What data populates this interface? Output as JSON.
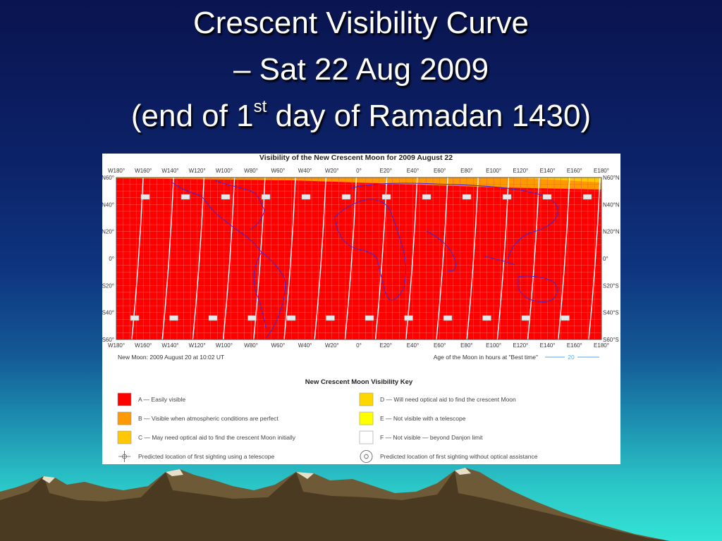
{
  "title": {
    "line1": "Crescent Visibility Curve",
    "line2": "– Sat 22 Aug 2009",
    "line3_pre": "(end of 1",
    "line3_sup": "st",
    "line3_post": " day of Ramadan 1430)"
  },
  "map": {
    "title": "Visibility of the New Crescent Moon for 2009 August 22",
    "lon_labels": [
      "W180°",
      "W160°",
      "W140°",
      "W120°",
      "W100°",
      "W80°",
      "W60°",
      "W40°",
      "W20°",
      "0°",
      "E20°",
      "E40°",
      "E60°",
      "E80°",
      "E100°",
      "E120°",
      "E140°",
      "E160°",
      "E180°"
    ],
    "lat_labels_left": [
      "N60°",
      "N40°",
      "N20°",
      "0°",
      "S20°",
      "S40°",
      "S60°"
    ],
    "lat_labels_right": [
      "N60°N",
      "N40°N",
      "N20°N",
      "0°",
      "S20°S",
      "S40°S",
      "S60°S"
    ],
    "new_moon_text": "New Moon: 2009 August 20 at 10:02 UT",
    "age_text": "Age of the Moon in hours at \"Best time\"",
    "age_value": "20",
    "colors": {
      "easily_visible": "#ff0000",
      "atmospheric_perfect": "#ff9900",
      "optical_initially": "#ffc800",
      "optical_aid": "#ffd700",
      "not_visible_telescope": "#ffff00",
      "beyond_danjon": "#ffffff"
    }
  },
  "key": {
    "title": "New Crescent Moon Visibility Key",
    "items": [
      {
        "label": "A — Easily visible",
        "color": "#ff0000"
      },
      {
        "label": "B — Visible when atmospheric conditions are perfect",
        "color": "#ff9900"
      },
      {
        "label": "C — May need optical aid to find the crescent Moon initially",
        "color": "#ffc800"
      },
      {
        "label": "Predicted location of first sighting using a telescope",
        "color": ""
      },
      {
        "label": "D — Will need optical aid to find the crescent Moon",
        "color": "#ffd700"
      },
      {
        "label": "E — Not visible with a telescope",
        "color": "#ffff00"
      },
      {
        "label": "F — Not visible — beyond Danjon limit",
        "color": "#ffffff"
      },
      {
        "label": "Predicted location of first sighting without optical assistance",
        "color": ""
      }
    ]
  }
}
